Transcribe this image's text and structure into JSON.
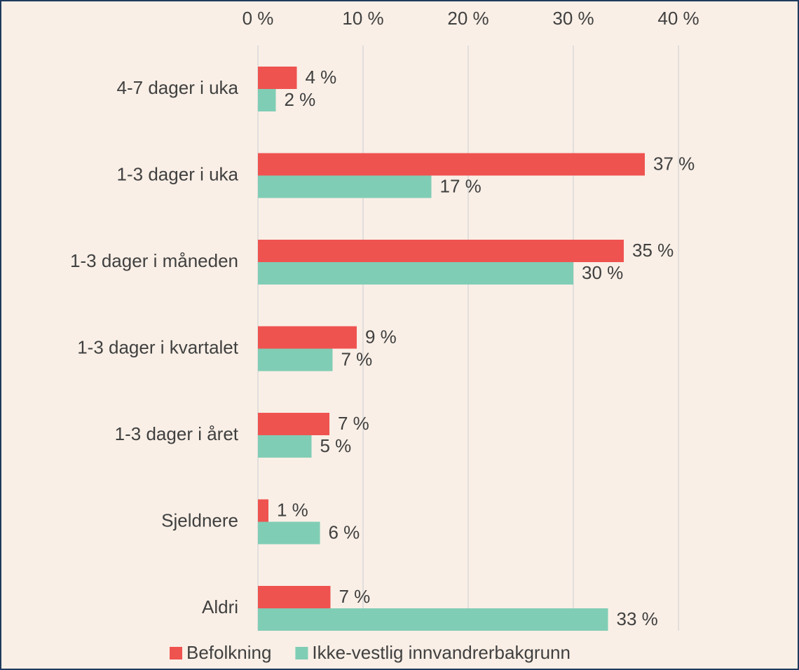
{
  "chart_data": {
    "type": "hbar",
    "categories": [
      "4-7 dager i uka",
      "1-3 dager i uka",
      "1-3 dager i måneden",
      "1-3 dager i kvartalet",
      "1-3 dager i året",
      "Sjeldnere",
      "Aldri"
    ],
    "series": [
      {
        "name": "Befolkning",
        "color": "#ef5350",
        "values": [
          3.7,
          36.8,
          34.8,
          9.4,
          6.8,
          1.0,
          6.9
        ],
        "value_labels": [
          "4 %",
          "37 %",
          "35 %",
          "9 %",
          "7 %",
          "1 %",
          "7 %"
        ]
      },
      {
        "name": "Ikke-vestlig innvandrerbakgrunn",
        "color": "#80cdb5",
        "values": [
          1.7,
          16.5,
          30.0,
          7.1,
          5.1,
          5.9,
          33.3
        ],
        "value_labels": [
          "2 %",
          "17 %",
          "30 %",
          "7 %",
          "5 %",
          "6 %",
          "33 %"
        ]
      }
    ],
    "xlim": [
      0,
      40
    ],
    "xticks": [
      {
        "value": 0,
        "label": "0 %"
      },
      {
        "value": 10,
        "label": "10 %"
      },
      {
        "value": 20,
        "label": "20 %"
      },
      {
        "value": 30,
        "label": "30 %"
      },
      {
        "value": 40,
        "label": "40 %"
      }
    ],
    "grid": true,
    "legend": "bottom"
  }
}
